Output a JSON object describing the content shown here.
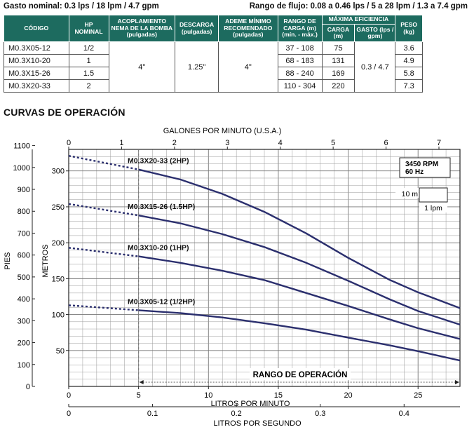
{
  "header": {
    "left": "Gasto nominal: 0.3 lps / 18 lpm / 4.7 gpm",
    "right": "Rango de flujo: 0.08 a 0.46 lps / 5 a 28 lpm / 1.3 a 7.4 gpm"
  },
  "table": {
    "headers": {
      "codigo": "CÓDIGO",
      "hp": "HP NOMINAL",
      "acople": "ACOPLAMIENTO NEMA DE LA BOMBA (pulgadas)",
      "descarga": "DESCARGA (pulgadas)",
      "ademe": "ADEME MÍNIMO RECOMENDADO (pulgadas)",
      "rango": "RANGO DE CARGA (m) (mín. - máx.)",
      "maxef": "MÁXIMA EFICIENCIA",
      "carga": "CARGA (m)",
      "gasto": "GASTO (lps / gpm)",
      "peso": "PESO (kg)"
    },
    "rows": [
      {
        "code": "M0.3X05-12",
        "hp": "1/2",
        "rango": "37 - 108",
        "carga": "75",
        "peso": "3.6"
      },
      {
        "code": "M0.3X10-20",
        "hp": "1",
        "rango": "68 - 183",
        "carga": "131",
        "peso": "4.9"
      },
      {
        "code": "M0.3X15-26",
        "hp": "1.5",
        "rango": "88 - 240",
        "carga": "169",
        "peso": "5.8"
      },
      {
        "code": "M0.3X20-33",
        "hp": "2",
        "rango": "110 - 304",
        "carga": "220",
        "peso": "7.3"
      }
    ],
    "acople": "4\"",
    "descarga": "1.25\"",
    "ademe": "4\"",
    "gasto": "0.3 / 4.7"
  },
  "section_title": "CURVAS DE OPERACIÓN",
  "colors": {
    "curve": "#2b2f6e",
    "header_bg": "#1d6b5f",
    "grid": "#9a9a9a"
  },
  "chart_data": {
    "type": "line",
    "xlabel": "LITROS POR MINUTO",
    "ylabel": "METROS",
    "xlim": [
      0,
      28
    ],
    "ylim": [
      0,
      330
    ],
    "x_ticks": [
      0,
      5,
      10,
      15,
      20,
      25
    ],
    "y_ticks": [
      50,
      100,
      150,
      200,
      250,
      300
    ],
    "secondary_axes": {
      "top": {
        "label": "GALONES POR MINUTO (U.S.A.)",
        "ticks": [
          0,
          1,
          2,
          3,
          4,
          5,
          6,
          7
        ],
        "factor": 3.785
      },
      "bottom": {
        "label": "LITROS POR SEGUNDO",
        "ticks": [
          "0",
          "0.1",
          "0.2",
          "0.3",
          "0.4"
        ],
        "values": [
          0,
          0.1,
          0.2,
          0.3,
          0.4
        ],
        "factor": 60
      },
      "left": {
        "label": "PIES",
        "ticks": [
          0,
          100,
          200,
          300,
          400,
          500,
          600,
          700,
          800,
          900,
          1000,
          1100
        ],
        "factor": 0.3048
      }
    },
    "operating_range": {
      "label": "RANGO DE OPERACIÓN",
      "x_start": 5,
      "x_end": 28
    },
    "annotation": {
      "rpm": "3450 RPM",
      "hz": "60 Hz",
      "scale_head": "10 m",
      "scale_flow": "1 lpm"
    },
    "grid": true,
    "series": [
      {
        "name": "M0.3X20-33 (2HP)",
        "x": [
          0,
          5,
          8,
          11,
          14,
          17,
          20,
          23,
          25,
          28
        ],
        "y": [
          321,
          302,
          288,
          268,
          243,
          213,
          179,
          148,
          131,
          109
        ]
      },
      {
        "name": "M0.3X15-26 (1.5HP)",
        "x": [
          0,
          5,
          8,
          11,
          14,
          17,
          20,
          23,
          25,
          28
        ],
        "y": [
          254,
          238,
          227,
          212,
          194,
          172,
          147,
          121,
          105,
          86
        ]
      },
      {
        "name": "M0.3X10-20 (1HP)",
        "x": [
          0,
          5,
          8,
          11,
          14,
          17,
          20,
          23,
          25,
          28
        ],
        "y": [
          193,
          181,
          172,
          161,
          148,
          130,
          112,
          93,
          81,
          66
        ]
      },
      {
        "name": "M0.3X05-12 (1/2HP)",
        "x": [
          0,
          5,
          8,
          11,
          14,
          17,
          20,
          23,
          25,
          28
        ],
        "y": [
          113,
          106,
          102,
          96,
          88,
          79,
          68,
          57,
          49,
          36
        ]
      }
    ]
  }
}
